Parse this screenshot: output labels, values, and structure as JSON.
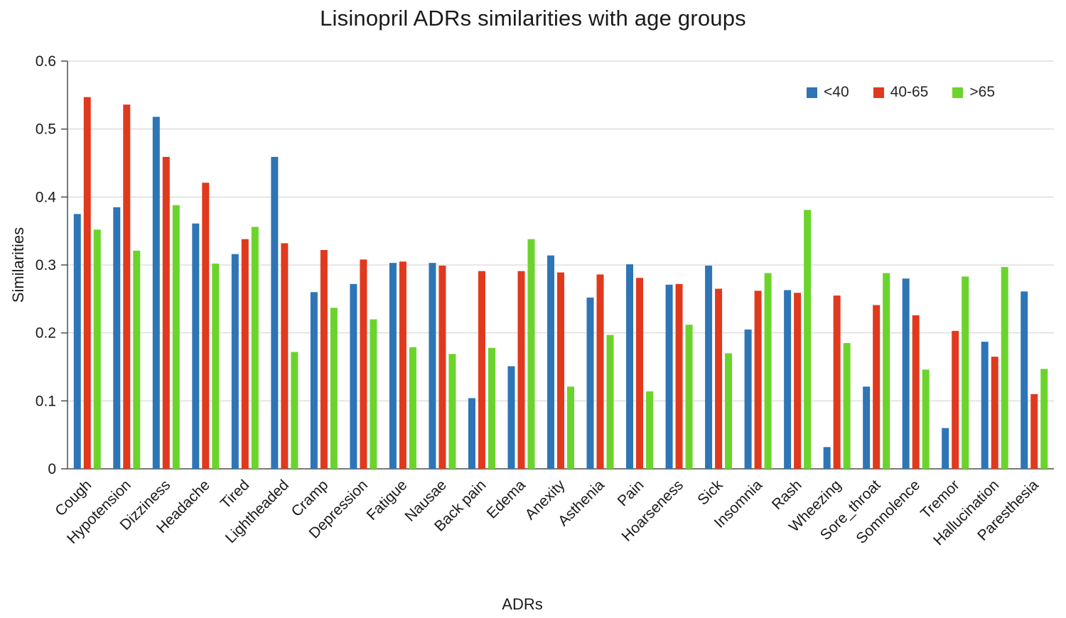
{
  "title": "Lisinopril ADRs similarities with age groups",
  "chart_data": {
    "type": "bar",
    "title": "Lisinopril ADRs similarities with age groups",
    "xlabel": "ADRs",
    "ylabel": "Similarities",
    "ylim": [
      0,
      0.6
    ],
    "ytick_step": 0.1,
    "grid": true,
    "legend_position": "top-right",
    "categories": [
      "Cough",
      "Hypotension",
      "Dizziness",
      "Headache",
      "Tired",
      "Lightheaded",
      "Cramp",
      "Depression",
      "Fatigue",
      "Nausae",
      "Back pain",
      "Edema",
      "Anexity",
      "Asthenia",
      "Pain",
      "Hoarseness",
      "Sick",
      "Insomnia",
      "Rash",
      "Wheezing",
      "Sore_throat",
      "Somnolence",
      "Tremor",
      "Hallucination",
      "Paresthesia"
    ],
    "series": [
      {
        "name": "<40",
        "color": "#2E75B6",
        "values": [
          0.375,
          0.385,
          0.518,
          0.361,
          0.316,
          0.459,
          0.26,
          0.272,
          0.303,
          0.303,
          0.104,
          0.151,
          0.314,
          0.252,
          0.301,
          0.271,
          0.299,
          0.205,
          0.263,
          0.032,
          0.121,
          0.28,
          0.06,
          0.187,
          0.261
        ]
      },
      {
        "name": "40-65",
        "color": "#E0391E",
        "values": [
          0.547,
          0.536,
          0.459,
          0.421,
          0.338,
          0.332,
          0.322,
          0.308,
          0.305,
          0.299,
          0.291,
          0.291,
          0.289,
          0.286,
          0.281,
          0.272,
          0.265,
          0.262,
          0.259,
          0.255,
          0.241,
          0.226,
          0.203,
          0.165,
          0.11
        ]
      },
      {
        "name": ">65",
        "color": "#6BD42C",
        "values": [
          0.352,
          0.321,
          0.388,
          0.302,
          0.356,
          0.172,
          0.237,
          0.22,
          0.179,
          0.169,
          0.178,
          0.338,
          0.121,
          0.197,
          0.114,
          0.212,
          0.17,
          0.288,
          0.381,
          0.185,
          0.288,
          0.146,
          0.283,
          0.297,
          0.147
        ]
      }
    ],
    "style": {
      "gridline_color": "#cfcfcf",
      "axis_color": "#4d4d4d",
      "tick_label_color": "#1a1a1a"
    }
  }
}
